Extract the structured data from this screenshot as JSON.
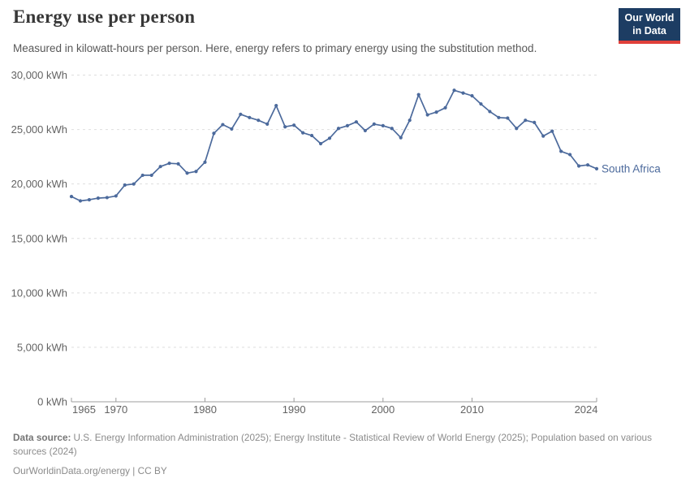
{
  "header": {
    "title": "Energy use per person",
    "subtitle": "Measured in kilowatt-hours per person. Here, energy refers to primary energy using the substitution method."
  },
  "logo": {
    "line1": "Our World",
    "line2": "in Data",
    "bg_color": "#1d3d63",
    "accent_color": "#e0403a"
  },
  "chart_data": {
    "type": "line",
    "title": "Energy use per person",
    "xlabel": "",
    "ylabel": "kWh",
    "ylim": [
      0,
      30000
    ],
    "yticks": [
      0,
      5000,
      10000,
      15000,
      20000,
      25000,
      30000
    ],
    "ytick_labels": [
      "0 kWh",
      "5,000 kWh",
      "10,000 kWh",
      "15,000 kWh",
      "20,000 kWh",
      "25,000 kWh",
      "30,000 kWh"
    ],
    "xticks": [
      1965,
      1970,
      1980,
      1990,
      2000,
      2010,
      2024
    ],
    "xtick_labels": [
      "1965",
      "1970",
      "1980",
      "1990",
      "2000",
      "2010",
      "2024"
    ],
    "grid": "dashed-horizontal",
    "legend_position": "end-of-line-label",
    "x": [
      1965,
      1966,
      1967,
      1968,
      1969,
      1970,
      1971,
      1972,
      1973,
      1974,
      1975,
      1976,
      1977,
      1978,
      1979,
      1980,
      1981,
      1982,
      1983,
      1984,
      1985,
      1986,
      1987,
      1988,
      1989,
      1990,
      1991,
      1992,
      1993,
      1994,
      1995,
      1996,
      1997,
      1998,
      1999,
      2000,
      2001,
      2002,
      2003,
      2004,
      2005,
      2006,
      2007,
      2008,
      2009,
      2010,
      2011,
      2012,
      2013,
      2014,
      2015,
      2016,
      2017,
      2018,
      2019,
      2020,
      2021,
      2022,
      2023,
      2024
    ],
    "series": [
      {
        "name": "South Africa",
        "color": "#4c6a9c",
        "values": [
          18850,
          18450,
          18550,
          18700,
          18750,
          18900,
          19900,
          20000,
          20800,
          20800,
          21600,
          21900,
          21850,
          21000,
          21150,
          22000,
          24650,
          25450,
          25050,
          26400,
          26100,
          25850,
          25500,
          27200,
          25250,
          25400,
          24700,
          24450,
          23700,
          24200,
          25100,
          25350,
          25700,
          24900,
          25500,
          25350,
          25100,
          24250,
          25850,
          28200,
          26350,
          26600,
          27000,
          28600,
          28350,
          28100,
          27350,
          26650,
          26100,
          26050,
          25100,
          25850,
          25650,
          24400,
          24850,
          23000,
          22700,
          21650,
          21750,
          21400
        ]
      }
    ],
    "colors": {
      "gridline": "#dedede",
      "axis": "#9c9c9c",
      "tick_label": "#636363"
    }
  },
  "footer": {
    "datasource_label": "Data source:",
    "datasource_text": "U.S. Energy Information Administration (2025); Energy Institute - Statistical Review of World Energy (2025); Population based on various sources (2024)",
    "license_line": "OurWorldinData.org/energy | CC BY"
  }
}
